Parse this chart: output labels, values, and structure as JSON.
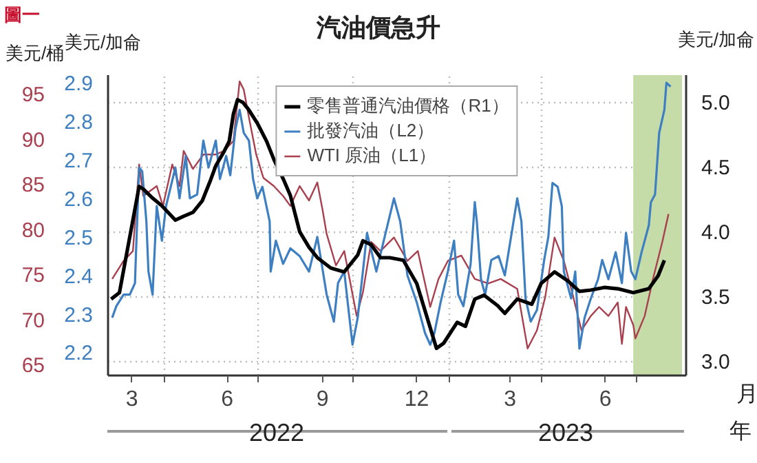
{
  "chart_data": {
    "type": "line",
    "title": "汽油價急升",
    "xlabel": "月",
    "ylabel": "美元/加侖",
    "y2label": "美元/加侖",
    "y3label": "美元/桶",
    "annotations": [
      "圖一",
      "2022",
      "2023",
      "年"
    ],
    "xlim": [
      "2022-02-06",
      "2023-08-18"
    ],
    "xticks": [
      {
        "value": "2022-03-01",
        "label": "3"
      },
      {
        "value": "2022-06-01",
        "label": "6"
      },
      {
        "value": "2022-09-01",
        "label": "9"
      },
      {
        "value": "2022-12-01",
        "label": "12"
      },
      {
        "value": "2023-03-01",
        "label": "3"
      },
      {
        "value": "2023-06-01",
        "label": "6"
      },
      {
        "value": "2022-04-01",
        "label": null
      },
      {
        "value": "2022-07-01",
        "label": null
      },
      {
        "value": "2022-10-01",
        "label": null
      },
      {
        "value": "2023-01-01",
        "label": null
      },
      {
        "value": "2023-04-01",
        "label": null
      },
      {
        "value": "2023-07-01",
        "label": null
      }
    ],
    "ylim": [
      2.14,
      2.92
    ],
    "yticks": [
      2.2,
      2.3,
      2.4,
      2.5,
      2.6,
      2.7,
      2.8,
      2.9
    ],
    "y2lim": [
      2.89,
      5.21
    ],
    "y2ticks": [
      {
        "value": 3,
        "label": "3.0"
      },
      3.5,
      {
        "value": 4,
        "label": "4.0"
      },
      4.5,
      {
        "value": 5,
        "label": "5.0"
      }
    ],
    "y3lim": [
      63.8,
      97.1
    ],
    "y3ticks": [
      65,
      70,
      75,
      80,
      85,
      90,
      95
    ],
    "grid": true,
    "legend": "top",
    "bands": [
      {
        "axis": "x",
        "from": "2023-06-28",
        "to": "2023-08-14",
        "color": "#c5dba8"
      }
    ],
    "series": [
      {
        "name": "零售普通汽油價格（R1）",
        "color": "#000000",
        "axis": "y2",
        "x": [
          "2022-02-09",
          "2022-02-17",
          "2022-03-08",
          "2022-03-12",
          "2022-03-21",
          "2022-03-30",
          "2022-04-12",
          "2022-04-20",
          "2022-04-29",
          "2022-05-08",
          "2022-05-16",
          "2022-05-21",
          "2022-05-29",
          "2022-06-03",
          "2022-06-07",
          "2022-06-11",
          "2022-06-16",
          "2022-06-22",
          "2022-06-30",
          "2022-07-09",
          "2022-07-16",
          "2022-07-25",
          "2022-08-01",
          "2022-08-10",
          "2022-08-19",
          "2022-08-27",
          "2022-09-09",
          "2022-09-22",
          "2022-10-05",
          "2022-10-10",
          "2022-10-18",
          "2022-10-27",
          "2022-11-05",
          "2022-11-18",
          "2022-12-01",
          "2022-12-09",
          "2022-12-20",
          "2022-12-27",
          "2023-01-09",
          "2023-01-17",
          "2023-01-26",
          "2023-02-04",
          "2023-02-17",
          "2023-02-24",
          "2023-03-08",
          "2023-03-22",
          "2023-03-31",
          "2023-04-13",
          "2023-04-26",
          "2023-05-07",
          "2023-05-18",
          "2023-05-31",
          "2023-06-13",
          "2023-06-28",
          "2023-07-13",
          "2023-07-22",
          "2023-07-28"
        ],
        "values": [
          3.48,
          3.53,
          4.35,
          4.33,
          4.26,
          4.2,
          4.09,
          4.12,
          4.15,
          4.24,
          4.4,
          4.51,
          4.62,
          4.7,
          4.91,
          5.02,
          5.0,
          4.94,
          4.84,
          4.7,
          4.56,
          4.41,
          4.28,
          4.0,
          3.88,
          3.8,
          3.72,
          3.69,
          3.82,
          3.93,
          3.9,
          3.8,
          3.8,
          3.78,
          3.6,
          3.39,
          3.1,
          3.14,
          3.3,
          3.27,
          3.48,
          3.51,
          3.43,
          3.37,
          3.48,
          3.44,
          3.6,
          3.69,
          3.62,
          3.54,
          3.55,
          3.57,
          3.56,
          3.53,
          3.56,
          3.66,
          3.78
        ]
      },
      {
        "name": "批發汽油（L2）",
        "color": "#3d7fc1",
        "x": [
          "2022-02-10",
          "2022-02-14",
          "2022-02-21",
          "2022-02-27",
          "2022-03-04",
          "2022-03-05",
          "2022-03-08",
          "2022-03-11",
          "2022-03-15",
          "2022-03-17",
          "2022-03-21",
          "2022-03-25",
          "2022-03-30",
          "2022-04-03",
          "2022-04-12",
          "2022-04-16",
          "2022-04-22",
          "2022-04-26",
          "2022-05-03",
          "2022-05-09",
          "2022-05-14",
          "2022-05-21",
          "2022-05-25",
          "2022-05-31",
          "2022-06-04",
          "2022-06-09",
          "2022-06-13",
          "2022-06-17",
          "2022-06-22",
          "2022-06-26",
          "2022-06-30",
          "2022-07-05",
          "2022-07-12",
          "2022-07-13",
          "2022-07-18",
          "2022-07-25",
          "2022-08-01",
          "2022-08-10",
          "2022-08-19",
          "2022-08-27",
          "2022-09-05",
          "2022-09-12",
          "2022-09-16",
          "2022-09-22",
          "2022-09-27",
          "2022-09-30",
          "2022-10-05",
          "2022-10-10",
          "2022-10-14",
          "2022-10-23",
          "2022-10-31",
          "2022-11-09",
          "2022-11-15",
          "2022-11-22",
          "2022-12-01",
          "2022-12-09",
          "2022-12-14",
          "2022-12-18",
          "2022-12-24",
          "2022-12-31",
          "2023-01-06",
          "2023-01-10",
          "2023-01-15",
          "2023-01-22",
          "2023-01-26",
          "2023-01-28",
          "2023-02-01",
          "2023-02-05",
          "2023-02-11",
          "2023-02-18",
          "2023-02-24",
          "2023-03-08",
          "2023-03-12",
          "2023-03-16",
          "2023-03-21",
          "2023-03-27",
          "2023-04-03",
          "2023-04-07",
          "2023-04-11",
          "2023-04-16",
          "2023-04-20",
          "2023-04-22",
          "2023-04-29",
          "2023-05-03",
          "2023-05-07",
          "2023-05-12",
          "2023-05-18",
          "2023-05-25",
          "2023-05-29",
          "2023-06-04",
          "2023-06-11",
          "2023-06-17",
          "2023-06-21",
          "2023-06-26",
          "2023-06-30",
          "2023-07-06",
          "2023-07-13",
          "2023-07-15",
          "2023-07-19",
          "2023-07-23",
          "2023-07-28",
          "2023-07-30",
          "2023-08-03"
        ],
        "values": [
          2.29,
          2.32,
          2.35,
          2.35,
          2.38,
          2.46,
          2.68,
          2.67,
          2.54,
          2.41,
          2.35,
          2.58,
          2.49,
          2.58,
          2.68,
          2.6,
          2.71,
          2.6,
          2.61,
          2.75,
          2.68,
          2.75,
          2.65,
          2.71,
          2.66,
          2.78,
          2.83,
          2.77,
          2.75,
          2.65,
          2.6,
          2.63,
          2.54,
          2.41,
          2.49,
          2.43,
          2.47,
          2.45,
          2.41,
          2.5,
          2.35,
          2.28,
          2.38,
          2.41,
          2.29,
          2.22,
          2.29,
          2.41,
          2.51,
          2.41,
          2.5,
          2.6,
          2.54,
          2.4,
          2.33,
          2.25,
          2.22,
          2.25,
          2.33,
          2.41,
          2.49,
          2.35,
          2.32,
          2.43,
          2.59,
          2.54,
          2.39,
          2.35,
          2.44,
          2.45,
          2.4,
          2.6,
          2.54,
          2.34,
          2.28,
          2.31,
          2.44,
          2.5,
          2.64,
          2.63,
          2.58,
          2.41,
          2.34,
          2.41,
          2.21,
          2.29,
          2.34,
          2.39,
          2.44,
          2.39,
          2.46,
          2.38,
          2.51,
          2.41,
          2.39,
          2.46,
          2.53,
          2.59,
          2.61,
          2.77,
          2.83,
          2.9,
          2.89
        ]
      },
      {
        "name": "WTI 原油（L1）",
        "color": "#a8404f",
        "axis": "y3",
        "x": [
          "2022-02-10",
          "2022-02-21",
          "2022-03-02",
          "2022-03-08",
          "2022-03-12",
          "2022-03-25",
          "2022-03-31",
          "2022-04-09",
          "2022-04-16",
          "2022-04-20",
          "2022-04-29",
          "2022-05-09",
          "2022-05-21",
          "2022-05-29",
          "2022-06-07",
          "2022-06-13",
          "2022-06-17",
          "2022-06-22",
          "2022-06-29",
          "2022-07-06",
          "2022-07-16",
          "2022-07-25",
          "2022-08-01",
          "2022-08-10",
          "2022-08-19",
          "2022-08-27",
          "2022-09-01",
          "2022-09-05",
          "2022-09-14",
          "2022-09-22",
          "2022-09-29",
          "2022-10-04",
          "2022-10-10",
          "2022-10-18",
          "2022-10-27",
          "2022-11-09",
          "2022-11-22",
          "2022-12-02",
          "2022-12-14",
          "2022-12-22",
          "2022-12-31",
          "2023-01-13",
          "2023-01-26",
          "2023-02-08",
          "2023-02-20",
          "2023-03-08",
          "2023-03-18",
          "2023-03-27",
          "2023-04-04",
          "2023-04-13",
          "2023-04-22",
          "2023-04-30",
          "2023-05-09",
          "2023-05-18",
          "2023-05-26",
          "2023-06-04",
          "2023-06-13",
          "2023-06-17",
          "2023-06-21",
          "2023-06-28",
          "2023-06-30",
          "2023-07-09",
          "2023-07-17",
          "2023-07-26",
          "2023-08-01"
        ],
        "values": [
          74.5,
          76.5,
          77.6,
          87.2,
          83.7,
          84.8,
          82.6,
          87.2,
          84.8,
          88.7,
          86.7,
          88.3,
          88.3,
          88.7,
          89.8,
          96.4,
          95.5,
          92.4,
          88.3,
          85.7,
          84.8,
          83.7,
          82.6,
          84.8,
          83.2,
          85.2,
          82.2,
          79.5,
          76.0,
          77.6,
          73.4,
          70.4,
          73.0,
          78.6,
          77.6,
          79.1,
          76.5,
          77.6,
          71.4,
          74.5,
          76.5,
          77.1,
          74.5,
          74.0,
          74.5,
          73.4,
          66.8,
          68.8,
          72.5,
          79.1,
          76.5,
          73.0,
          68.8,
          70.4,
          71.4,
          70.4,
          71.9,
          67.3,
          71.4,
          69.4,
          67.9,
          70.4,
          74.5,
          78.6,
          81.7
        ]
      }
    ]
  }
}
